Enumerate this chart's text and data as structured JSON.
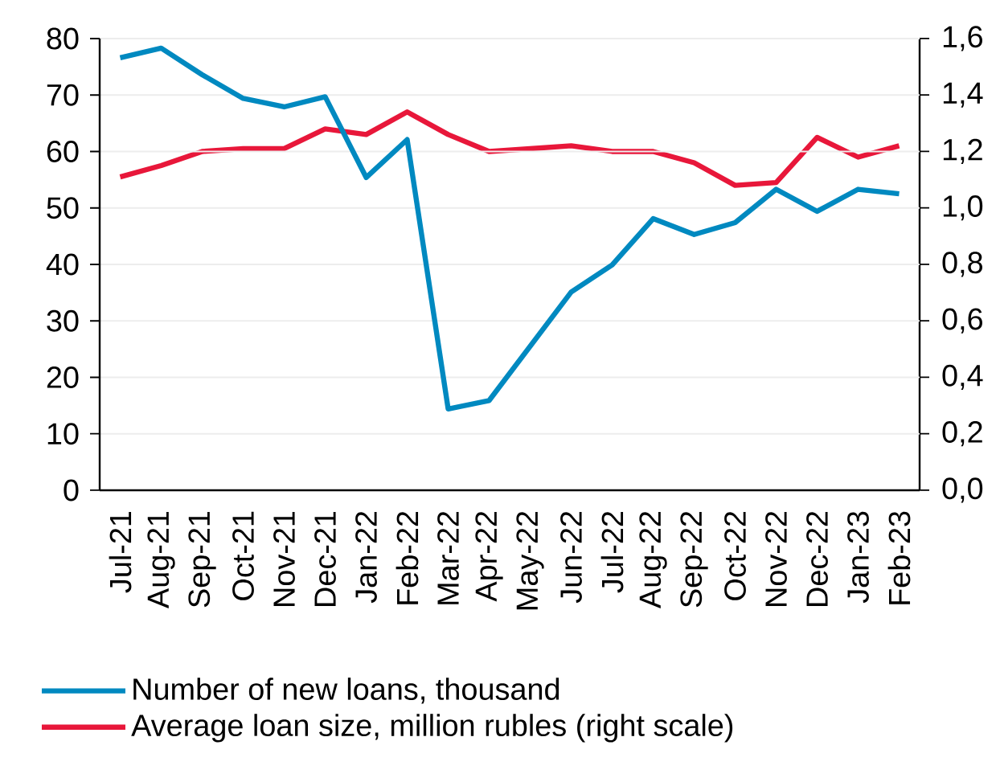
{
  "chart_data": {
    "type": "line",
    "categories": [
      "Jul-21",
      "Aug-21",
      "Sep-21",
      "Oct-21",
      "Nov-21",
      "Dec-21",
      "Jan-22",
      "Feb-22",
      "Mar-22",
      "Apr-22",
      "May-22",
      "Jun-22",
      "Jul-22",
      "Aug-22",
      "Sep-22",
      "Oct-22",
      "Nov-22",
      "Dec-22",
      "Jan-23",
      "Feb-23"
    ],
    "series": [
      {
        "name": "Number of new loans, thousand",
        "color": "#0089c0",
        "values": [
          76.6,
          78.3,
          73.6,
          69.4,
          67.9,
          69.7,
          55.4,
          62.1,
          14.4,
          15.9,
          25.5,
          35.1,
          39.9,
          48.1,
          45.3,
          47.4,
          53.3,
          49.4,
          53.3,
          52.5
        ]
      },
      {
        "name": "Average loan size, million rubles (right scale)",
        "color": "#e8173a",
        "axis": "y2",
        "values": [
          1.11,
          1.15,
          1.2,
          1.21,
          1.21,
          1.28,
          1.26,
          1.34,
          1.26,
          1.2,
          1.21,
          1.22,
          1.2,
          1.2,
          1.16,
          1.08,
          1.09,
          1.25,
          1.18,
          1.22
        ]
      }
    ],
    "ylim": [
      0,
      80
    ],
    "yticks": [
      0,
      10,
      20,
      30,
      40,
      50,
      60,
      70,
      80
    ],
    "y2lim": [
      0,
      1.6
    ],
    "y2ticks": [
      {
        "value": 0,
        "label": "0,0"
      },
      {
        "value": 0.2,
        "label": "0,2"
      },
      {
        "value": 0.4,
        "label": "0,4"
      },
      {
        "value": 0.6,
        "label": "0,6"
      },
      {
        "value": 0.8,
        "label": "0,8"
      },
      {
        "value": 1.0,
        "label": "1,0"
      },
      {
        "value": 1.2,
        "label": "1,2"
      },
      {
        "value": 1.4,
        "label": "1,4"
      },
      {
        "value": 1.6,
        "label": "1,6"
      }
    ],
    "grid": "y",
    "legend": "bottom"
  }
}
